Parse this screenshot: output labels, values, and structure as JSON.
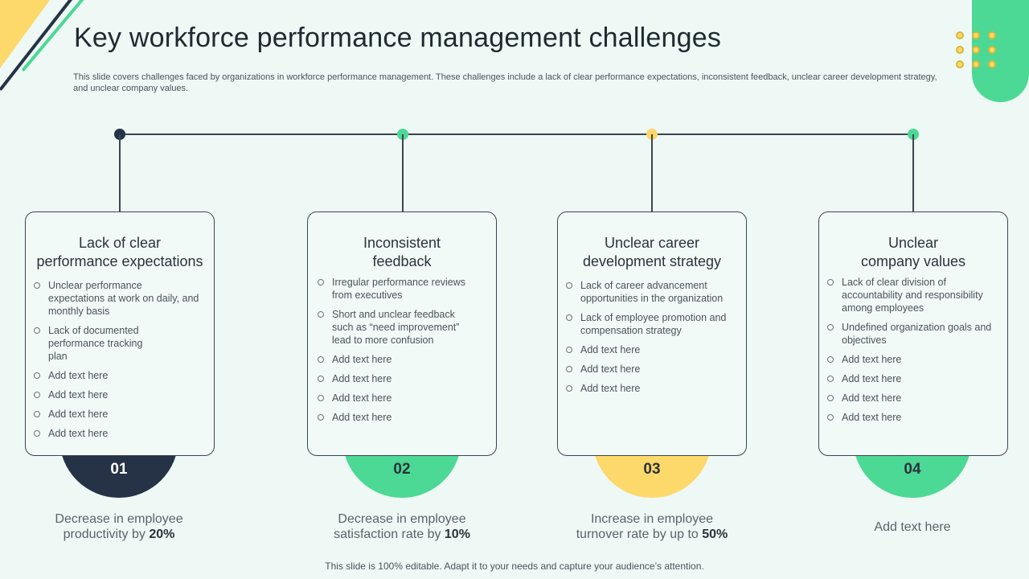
{
  "title": "Key workforce performance management challenges",
  "subtitle": "This slide covers challenges faced by organizations in workforce performance management. These challenges include a lack of clear performance expectations, inconsistent feedback, unclear career development strategy, and unclear company values.",
  "colors": {
    "navy": "#263246",
    "green": "#4cd895",
    "yellow": "#fdd86a",
    "background": "#eef8f4"
  },
  "cards": [
    {
      "number": "01",
      "heading_line1": "Lack of clear",
      "heading_line2": "performance expectations",
      "bullets": [
        "Unclear performance expectations at work on daily, and monthly basis",
        "Lack of documented performance tracking plan",
        "Add text here",
        "Add text here",
        "Add text here",
        "Add text here"
      ],
      "caption_prefix": "Decrease in employee productivity by ",
      "caption_value": "20%"
    },
    {
      "number": "02",
      "heading_line1": "Inconsistent",
      "heading_line2": "feedback",
      "bullets": [
        "Irregular performance reviews from executives",
        "Short and unclear feedback such as “need improvement” lead to more confusion",
        "Add text here",
        "Add text here",
        "Add text here",
        "Add text here"
      ],
      "caption_prefix": "Decrease in employee satisfaction rate by ",
      "caption_value": "10%"
    },
    {
      "number": "03",
      "heading_line1": "Unclear career",
      "heading_line2": "development strategy",
      "bullets": [
        "Lack of career advancement opportunities in the organization",
        "Lack of employee promotion and compensation strategy",
        "Add text here",
        "Add text here",
        "Add text here"
      ],
      "caption_prefix": "Increase in employee turnover rate by up to ",
      "caption_value": "50%"
    },
    {
      "number": "04",
      "heading_line1": "Unclear",
      "heading_line2": "company values",
      "bullets": [
        "Lack of clear division of accountability and responsibility among employees",
        "Undefined organization goals and objectives",
        "Add text here",
        "Add text here",
        "Add text here",
        "Add text here"
      ],
      "caption_prefix": "Add text here",
      "caption_value": ""
    }
  ],
  "footer": "This slide is 100% editable. Adapt it to your needs and capture your audience’s attention."
}
